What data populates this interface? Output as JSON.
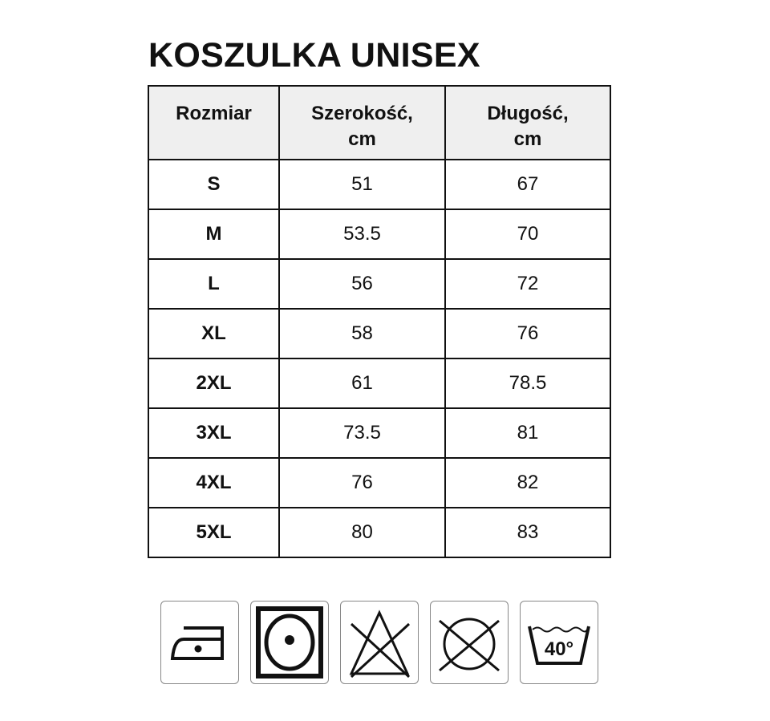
{
  "title": "KOSZULKA UNISEX",
  "table": {
    "headers": [
      "Rozmiar",
      "Szerokość,\ncm",
      "Długość,\ncm"
    ],
    "header_lines": [
      [
        "Rozmiar"
      ],
      [
        "Szerokość,",
        "cm"
      ],
      [
        "Długość,",
        "cm"
      ]
    ],
    "rows": [
      [
        "S",
        "51",
        "67"
      ],
      [
        "M",
        "53.5",
        "70"
      ],
      [
        "L",
        "56",
        "72"
      ],
      [
        "XL",
        "58",
        "76"
      ],
      [
        "2XL",
        "61",
        "78.5"
      ],
      [
        "3XL",
        "73.5",
        "81"
      ],
      [
        "4XL",
        "76",
        "82"
      ],
      [
        "5XL",
        "80",
        "83"
      ]
    ]
  },
  "care_icons": [
    {
      "name": "iron-low-heat-icon"
    },
    {
      "name": "tumble-dry-icon"
    },
    {
      "name": "do-not-bleach-icon"
    },
    {
      "name": "do-not-dry-clean-icon"
    },
    {
      "name": "wash-40-icon",
      "label": "40°"
    }
  ]
}
